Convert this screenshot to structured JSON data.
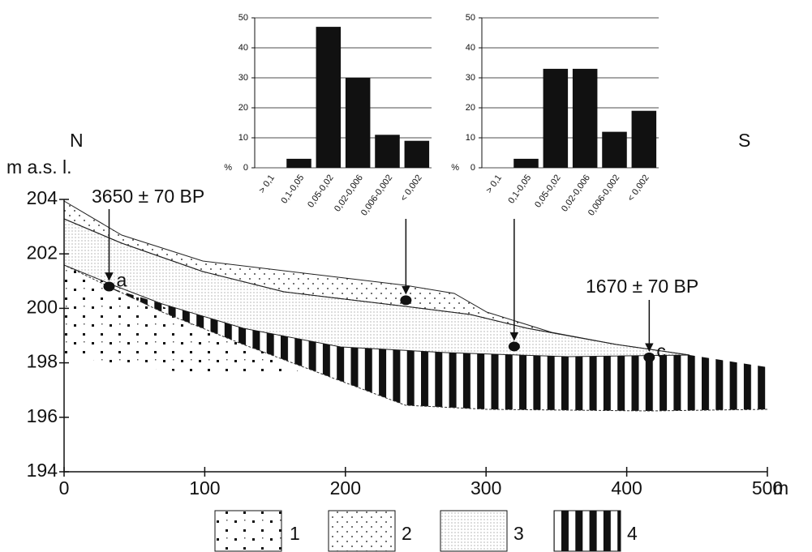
{
  "chart_data": [
    {
      "type": "bar",
      "y_label": "%",
      "categories": [
        "> 0,1",
        "0,1-0,05",
        "0,05-0,02",
        "0,02-0,006",
        "0,006-0,002",
        "< 0,002"
      ],
      "values": [
        0,
        3,
        47,
        30,
        11,
        9
      ],
      "color": "#111111",
      "ylim": [
        0,
        50
      ],
      "yticks": [
        0,
        10,
        20,
        30,
        40,
        50
      ],
      "grid": true
    },
    {
      "type": "bar",
      "y_label": "%",
      "categories": [
        "> 0,1",
        "0,1-0,05",
        "0,05-0,02",
        "0,02-0,006",
        "0,006-0,002",
        "< 0,002"
      ],
      "values": [
        0,
        3,
        33,
        33,
        12,
        19
      ],
      "color": "#111111",
      "ylim": [
        0,
        50
      ],
      "yticks": [
        0,
        10,
        20,
        30,
        40,
        50
      ],
      "grid": true
    },
    {
      "type": "scatter",
      "y_label": "m a.s. l.",
      "x_unit": "m",
      "left_label": "N",
      "right_label": "S",
      "x": [
        32,
        243,
        320,
        416
      ],
      "y": [
        200.8,
        200.3,
        198.6,
        198.2
      ],
      "point_labels": [
        "a",
        null,
        null,
        "c"
      ],
      "annotations": [
        "3650 ± 70 BP",
        "1670 ± 70 BP"
      ],
      "color": "#111111",
      "xlim": [
        0,
        500
      ],
      "ylim": [
        194,
        204
      ],
      "xticks": [
        0,
        100,
        200,
        300,
        400,
        500
      ],
      "yticks": [
        194,
        196,
        198,
        200,
        202,
        204
      ],
      "legend": [
        "1",
        "2",
        "3",
        "4"
      ]
    }
  ]
}
